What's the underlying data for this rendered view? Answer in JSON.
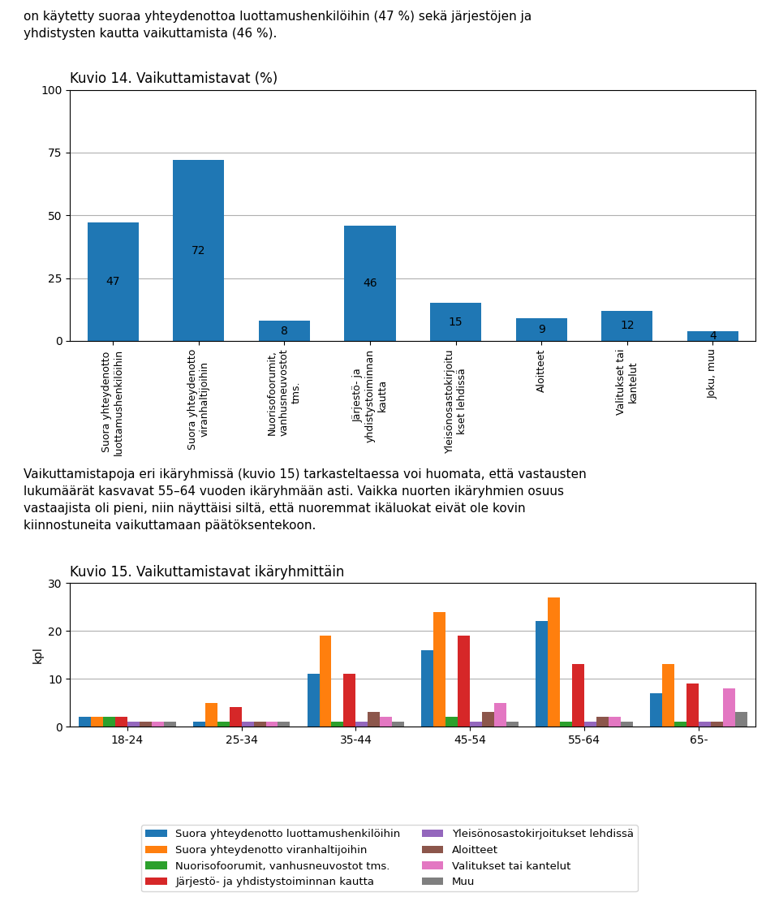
{
  "chart_data": [
    {
      "type": "bar",
      "title": "Kuvio 14. Vaikuttamistavat (%)",
      "annotations": [
        "on käytetty suoraa yhteydenottoa luottamushenkilöihin (47 %) sekä järjestöjen ja\nyhdistysten kautta vaikuttamista (46 %)."
      ],
      "categories": [
        "Suora yhteydenotto\nluottamushenkilöihin",
        "Suora yhteydenotto\nviranhaltijoihin",
        "Nuorisofoorumit,\nvanhusneuvostot\ntms.",
        "Järjestö- ja\nyhdistystoiminnan\nkautta",
        "Yleisönosastokirjoitu\nkset lehdissä",
        "Aloitteet",
        "Valitukset tai\nkantelut",
        "Joku, muu"
      ],
      "values": [
        47,
        72,
        8,
        46,
        15,
        9,
        12,
        4
      ],
      "ylim": [
        0,
        100
      ],
      "yticks": [
        0,
        25,
        50,
        75,
        100
      ],
      "grid": true,
      "data_labels": true
    },
    {
      "type": "bar",
      "title": "Kuvio 15. Vaikuttamistavat ikäryhmittäin",
      "annotations": [
        "Vaikuttamistapoja eri ikäryhmissä (kuvio 15) tarkasteltaessa voi huomata, että vastausten\nlukumäärät kasvavat 55–64 vuoden ikäryhmään asti. Vaikka nuorten ikäryhmien osuus\nvastaajista oli pieni, niin näyttäisi siltä, että nuoremmat ikäluokat eivät ole kovin\nkiinnostuneita vaikuttamaan päätöksentekoon."
      ],
      "ylabel": "kpl",
      "categories": [
        "18-24",
        "25-34",
        "35-44",
        "45-54",
        "55-64",
        "65-"
      ],
      "series": [
        {
          "name": "Suora yhteydenotto luottamushenkilöihin",
          "values": [
            2,
            1,
            11,
            16,
            22,
            7
          ]
        },
        {
          "name": "Suora yhteydenotto viranhaltijoihin",
          "values": [
            2,
            5,
            19,
            24,
            27,
            13
          ]
        },
        {
          "name": "Nuorisofoorumit, vanhusneuvostot tms.",
          "values": [
            2,
            1,
            1,
            2,
            1,
            1
          ]
        },
        {
          "name": "Järjestö- ja yhdistystoiminnan kautta",
          "values": [
            2,
            4,
            11,
            19,
            13,
            9
          ]
        },
        {
          "name": "Yleisönosastokirjoitukset lehdissä",
          "values": [
            1,
            1,
            1,
            1,
            1,
            1
          ]
        },
        {
          "name": "Aloitteet",
          "values": [
            1,
            1,
            3,
            3,
            2,
            1
          ]
        },
        {
          "name": "Valitukset tai kantelut",
          "values": [
            1,
            1,
            2,
            5,
            2,
            8
          ]
        },
        {
          "name": "Muu",
          "values": [
            1,
            1,
            1,
            1,
            1,
            3
          ]
        }
      ],
      "ylim": [
        0,
        30
      ],
      "yticks": [
        0,
        10,
        20,
        30
      ],
      "grid": true,
      "legend": "lower center"
    }
  ]
}
